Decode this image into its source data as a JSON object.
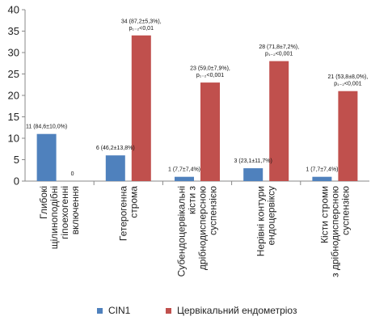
{
  "chart_data": {
    "type": "bar",
    "title": "",
    "xlabel": "",
    "ylabel": "",
    "ylim": [
      0,
      40
    ],
    "yticks": [
      0,
      5,
      10,
      15,
      20,
      25,
      30,
      35,
      40
    ],
    "grid": false,
    "legend_position": "bottom",
    "categories": [
      [
        "Глибокі",
        "щілиноподібні",
        "гіпоехогенні",
        "включення"
      ],
      [
        "Гетерогенна",
        "строма"
      ],
      [
        "Субендоцервікальні",
        "кісти з",
        "дрібнодисперсною",
        "суспензією"
      ],
      [
        "Нерівні контури",
        "ендоцервіксу"
      ],
      [
        "Кісти строми",
        "з дрібнодисперсною",
        "суспензією"
      ]
    ],
    "series": [
      {
        "name": "CIN1",
        "color": "#4f81bd",
        "values": [
          11,
          6,
          1,
          3,
          1
        ],
        "labels": [
          [
            "11 (84,6±10,0%)"
          ],
          [
            "6 (46,2±13,8%)"
          ],
          [
            "1 (7,7±7,4%)"
          ],
          [
            "3 (23,1±11,7%)"
          ],
          [
            "1 (7,7±7,4%)"
          ]
        ]
      },
      {
        "name": "Цервікальний ендометріоз",
        "color": "#c0504d",
        "values": [
          0,
          34,
          23,
          28,
          21
        ],
        "labels": [
          [
            "0"
          ],
          [
            "34 (87,2±5,3%),",
            "p₁₋₂<0,01"
          ],
          [
            "23 (59,0±7,9%),",
            "p₁₋₂<0,001"
          ],
          [
            "28 (71,8±7,2%),",
            "p₁₋₂<0,001"
          ],
          [
            "21 (53,8±8,0%),",
            "p₁₋₂<0,001"
          ]
        ]
      }
    ]
  }
}
